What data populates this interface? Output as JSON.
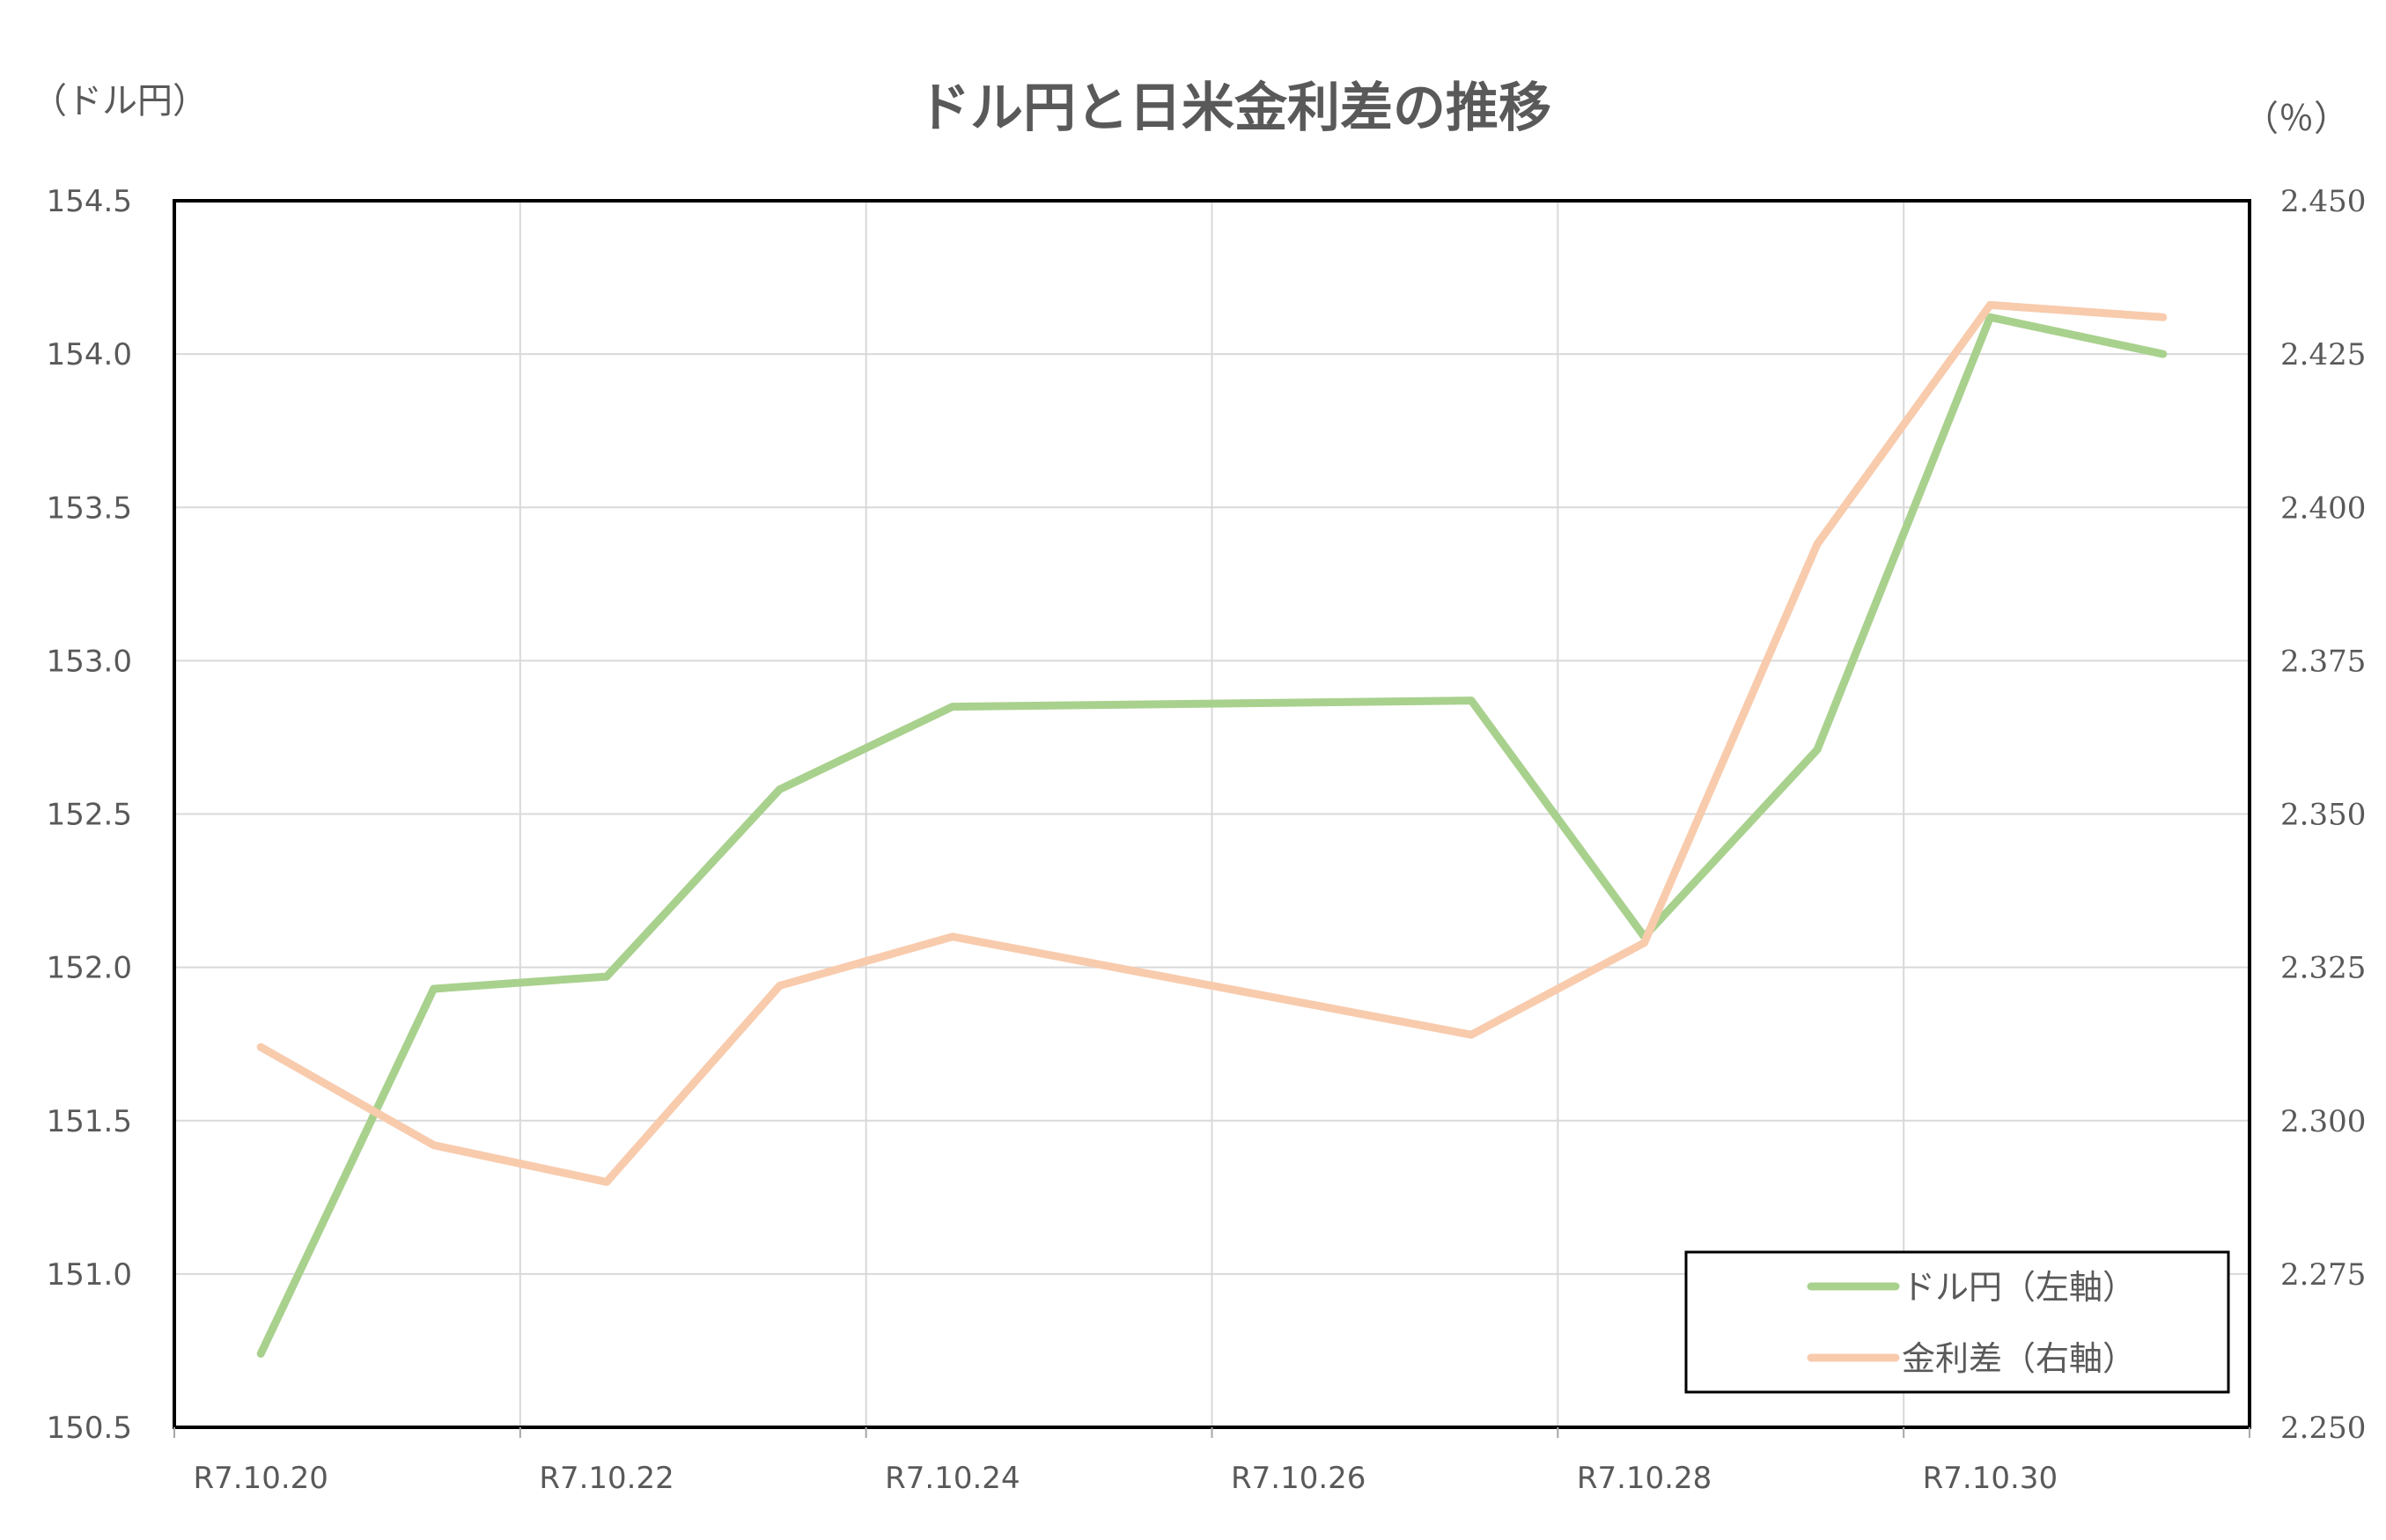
{
  "chart_data": {
    "type": "line",
    "title": "ドル円と日米金利差の推移",
    "ylabel": "（ドル円）",
    "y2label": "（％）",
    "x": [
      "R7.10.20",
      "R7.10.21",
      "R7.10.22",
      "R7.10.23",
      "R7.10.24",
      "R7.10.27",
      "R7.10.28",
      "R7.10.29",
      "R7.10.30",
      "R7.10.31"
    ],
    "x_positions": [
      20.0,
      21.0,
      22.0,
      23.0,
      24.0,
      27.0,
      28.0,
      29.0,
      30.0,
      31.0
    ],
    "x_tick_labels": [
      "R7.10.20",
      "R7.10.22",
      "R7.10.24",
      "R7.10.26",
      "R7.10.28",
      "R7.10.30"
    ],
    "x_tick_positions": [
      20,
      22,
      24,
      26,
      28,
      30
    ],
    "ylim": [
      150.5,
      154.5
    ],
    "y_ticks": [
      "150.5",
      "151.0",
      "151.5",
      "152.0",
      "152.5",
      "153.0",
      "153.5",
      "154.0",
      "154.5"
    ],
    "y2lim": [
      2.25,
      2.45
    ],
    "y2_ticks": [
      "2.250",
      "2.275",
      "2.300",
      "2.325",
      "2.350",
      "2.375",
      "2.400",
      "2.425",
      "2.450"
    ],
    "grid": true,
    "legend_placement": "bottom-right",
    "series": [
      {
        "name": "ドル円（左軸）",
        "axis": "left",
        "color": "#a9d18e",
        "values": [
          150.74,
          151.93,
          151.97,
          152.58,
          152.85,
          152.87,
          152.1,
          152.71,
          154.12,
          154.0
        ]
      },
      {
        "name": "金利差（右軸）",
        "axis": "right",
        "color": "#f8cbad",
        "values": [
          2.312,
          2.296,
          2.29,
          2.322,
          2.33,
          2.314,
          2.329,
          2.394,
          2.433,
          2.431
        ]
      }
    ]
  }
}
